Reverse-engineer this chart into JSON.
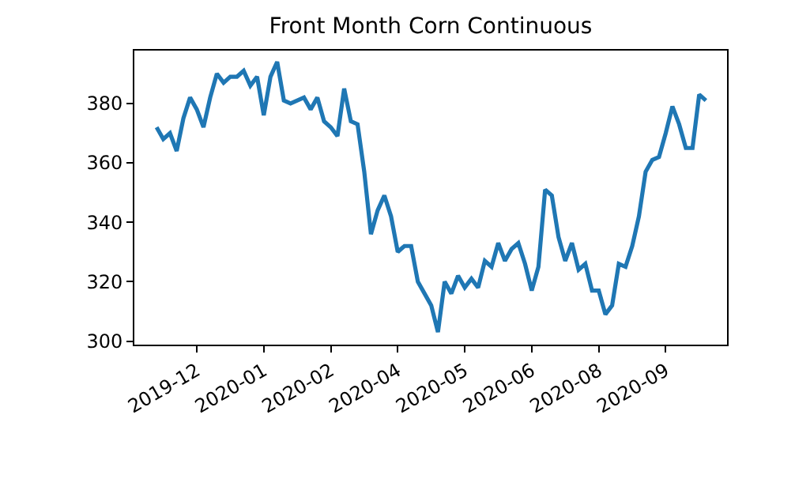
{
  "chart_data": {
    "type": "line",
    "title": "Front Month Corn Continuous",
    "categories": [
      null,
      null,
      null,
      null,
      null,
      null,
      "2019-12",
      null,
      null,
      null,
      null,
      null,
      null,
      null,
      null,
      null,
      "2020-01",
      null,
      null,
      null,
      null,
      null,
      null,
      null,
      null,
      null,
      "2020-02",
      null,
      null,
      null,
      null,
      null,
      null,
      null,
      null,
      null,
      "2020-04",
      null,
      null,
      null,
      null,
      null,
      null,
      null,
      null,
      null,
      "2020-05",
      null,
      null,
      null,
      null,
      null,
      null,
      null,
      null,
      null,
      "2020-06",
      null,
      null,
      null,
      null,
      null,
      null,
      null,
      null,
      null,
      "2020-08",
      null,
      null,
      null,
      null,
      null,
      null,
      null,
      null,
      null,
      "2020-09",
      null,
      null,
      null,
      null,
      null,
      null
    ],
    "series": [
      {
        "color": "#1f77b4",
        "values": [
          372,
          368,
          370,
          364,
          375,
          382,
          378,
          372,
          382,
          390,
          387,
          389,
          389,
          391,
          386,
          389,
          376,
          389,
          394,
          381,
          380,
          381,
          382,
          378,
          382,
          374,
          372,
          369,
          385,
          374,
          373,
          357,
          336,
          344,
          349,
          342,
          330,
          332,
          332,
          320,
          316,
          312,
          303,
          320,
          316,
          322,
          318,
          321,
          318,
          327,
          325,
          333,
          327,
          331,
          333,
          326,
          317,
          325,
          351,
          349,
          335,
          327,
          333,
          324,
          326,
          317,
          317,
          309,
          312,
          326,
          325,
          332,
          342,
          357,
          361,
          362,
          370,
          379,
          373,
          365,
          365,
          383,
          381
        ]
      }
    ],
    "ylim": [
      298.8,
      397.8
    ],
    "yticks": [
      300,
      320,
      340,
      360,
      380
    ],
    "grid": false,
    "line_style": "solid",
    "marker": "none"
  }
}
